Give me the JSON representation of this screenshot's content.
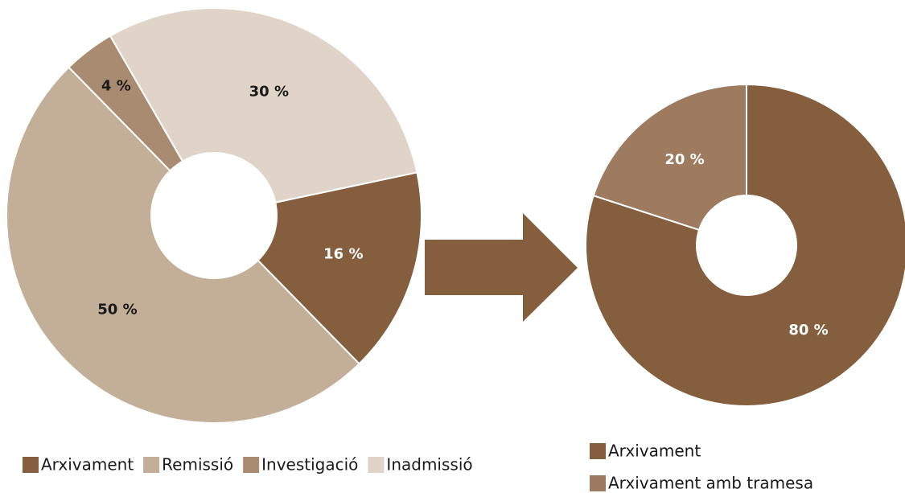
{
  "chart_data": [
    {
      "type": "pie",
      "categories": [
        "Arxivament",
        "Remissió",
        "Investigació",
        "Inadmissió"
      ],
      "values": [
        16,
        50,
        4,
        30
      ],
      "value_labels": [
        "16 %",
        "50 %",
        "4 %",
        "30 %"
      ],
      "colors": [
        "#855e3d",
        "#c3af98",
        "#a88b70",
        "#e0d4c8"
      ]
    },
    {
      "type": "pie",
      "categories": [
        "Arxivament",
        "Arxivament amb tramesa"
      ],
      "values": [
        80,
        20
      ],
      "value_labels": [
        "80 %",
        "20 %"
      ],
      "colors": [
        "#855e3d",
        "#9e7b5e"
      ]
    }
  ]
}
